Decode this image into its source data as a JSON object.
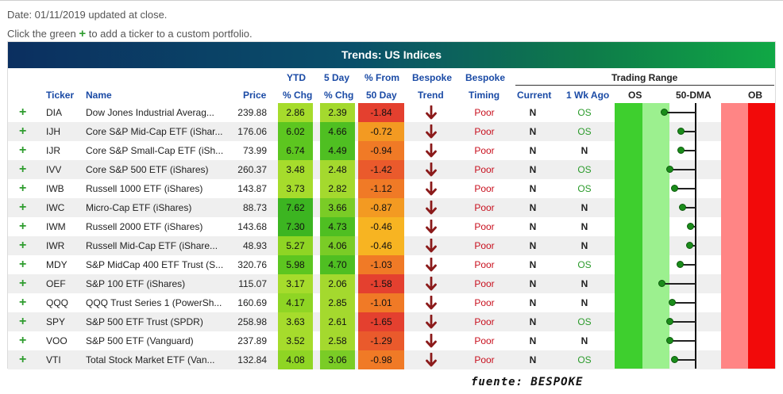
{
  "info": {
    "date_line": "Date: 01/11/2019 updated at close.",
    "portfolio_pre": "Click the green ",
    "portfolio_plus": "+",
    "portfolio_post": " to add a ticker to a custom portfolio."
  },
  "panel": {
    "title": "Trends: US Indices"
  },
  "headers": {
    "ticker": "Ticker",
    "name": "Name",
    "price": "Price",
    "ytd_top": "YTD",
    "ytd_bottom": "% Chg",
    "five_day_top": "5 Day",
    "five_day_bottom": "% Chg",
    "from50_top": "% From",
    "from50_bottom": "50 Day",
    "trend_top": "Bespoke",
    "trend_bottom": "Trend",
    "timing_top": "Bespoke",
    "timing_bottom": "Timing",
    "trading_range": "Trading Range",
    "current": "Current",
    "one_wk_ago": "1 Wk Ago",
    "os": "OS",
    "dma50": "50-DMA",
    "ob": "OB"
  },
  "rows": [
    {
      "plus": "+",
      "ticker": "DIA",
      "name": "Dow Jones Industrial Averag...",
      "price": "239.88",
      "ytd": "2.86",
      "five_day": "2.39",
      "from50": "-1.84",
      "timing": "Poor",
      "current": "N",
      "wk_ago": "OS",
      "range_level": -0.6
    },
    {
      "plus": "+",
      "ticker": "IJH",
      "name": "Core S&P Mid-Cap ETF (iShar...",
      "price": "176.06",
      "ytd": "6.02",
      "five_day": "4.66",
      "from50": "-0.72",
      "timing": "Poor",
      "current": "N",
      "wk_ago": "OS",
      "range_level": -0.28
    },
    {
      "plus": "+",
      "ticker": "IJR",
      "name": "Core S&P Small-Cap ETF (iSh...",
      "price": "73.99",
      "ytd": "6.74",
      "five_day": "4.49",
      "from50": "-0.94",
      "timing": "Poor",
      "current": "N",
      "wk_ago": "N",
      "range_level": -0.28
    },
    {
      "plus": "+",
      "ticker": "IVV",
      "name": "Core S&P 500 ETF (iShares)",
      "price": "260.37",
      "ytd": "3.48",
      "five_day": "2.48",
      "from50": "-1.42",
      "timing": "Poor",
      "current": "N",
      "wk_ago": "OS",
      "range_level": -0.5
    },
    {
      "plus": "+",
      "ticker": "IWB",
      "name": "Russell 1000 ETF (iShares)",
      "price": "143.87",
      "ytd": "3.73",
      "five_day": "2.82",
      "from50": "-1.12",
      "timing": "Poor",
      "current": "N",
      "wk_ago": "OS",
      "range_level": -0.4
    },
    {
      "plus": "+",
      "ticker": "IWC",
      "name": "Micro-Cap ETF (iShares)",
      "price": "88.73",
      "ytd": "7.62",
      "five_day": "3.66",
      "from50": "-0.87",
      "timing": "Poor",
      "current": "N",
      "wk_ago": "N",
      "range_level": -0.25
    },
    {
      "plus": "+",
      "ticker": "IWM",
      "name": "Russell 2000 ETF (iShares)",
      "price": "143.68",
      "ytd": "7.30",
      "five_day": "4.73",
      "from50": "-0.46",
      "timing": "Poor",
      "current": "N",
      "wk_ago": "N",
      "range_level": -0.1
    },
    {
      "plus": "+",
      "ticker": "IWR",
      "name": "Russell Mid-Cap ETF (iShare...",
      "price": "48.93",
      "ytd": "5.27",
      "five_day": "4.06",
      "from50": "-0.46",
      "timing": "Poor",
      "current": "N",
      "wk_ago": "N",
      "range_level": -0.12
    },
    {
      "plus": "+",
      "ticker": "MDY",
      "name": "S&P MidCap 400 ETF Trust (S...",
      "price": "320.76",
      "ytd": "5.98",
      "five_day": "4.70",
      "from50": "-1.03",
      "timing": "Poor",
      "current": "N",
      "wk_ago": "OS",
      "range_level": -0.3
    },
    {
      "plus": "+",
      "ticker": "OEF",
      "name": "S&P 100 ETF (iShares)",
      "price": "115.07",
      "ytd": "3.17",
      "five_day": "2.06",
      "from50": "-1.58",
      "timing": "Poor",
      "current": "N",
      "wk_ago": "N",
      "range_level": -0.65
    },
    {
      "plus": "+",
      "ticker": "QQQ",
      "name": "QQQ Trust Series 1 (PowerSh...",
      "price": "160.69",
      "ytd": "4.17",
      "five_day": "2.85",
      "from50": "-1.01",
      "timing": "Poor",
      "current": "N",
      "wk_ago": "N",
      "range_level": -0.45
    },
    {
      "plus": "+",
      "ticker": "SPY",
      "name": "S&P 500 ETF Trust (SPDR)",
      "price": "258.98",
      "ytd": "3.63",
      "five_day": "2.61",
      "from50": "-1.65",
      "timing": "Poor",
      "current": "N",
      "wk_ago": "OS",
      "range_level": -0.5
    },
    {
      "plus": "+",
      "ticker": "VOO",
      "name": "S&P 500 ETF (Vanguard)",
      "price": "237.89",
      "ytd": "3.52",
      "five_day": "2.58",
      "from50": "-1.29",
      "timing": "Poor",
      "current": "N",
      "wk_ago": "N",
      "range_level": -0.5
    },
    {
      "plus": "+",
      "ticker": "VTI",
      "name": "Total Stock Market ETF (Van...",
      "price": "132.84",
      "ytd": "4.08",
      "five_day": "3.06",
      "from50": "-0.98",
      "timing": "Poor",
      "current": "N",
      "wk_ago": "OS",
      "range_level": -0.4
    }
  ],
  "icons": {
    "trend": "down-arrow-icon",
    "add": "plus-icon"
  },
  "colors": {
    "timing_poor": "#c8101e",
    "trend_arrow": "#8b1a1a",
    "os_green": "#2b9b2b",
    "add_green": "#2e9c2e"
  },
  "source_note": "fuente: BESPOKE"
}
